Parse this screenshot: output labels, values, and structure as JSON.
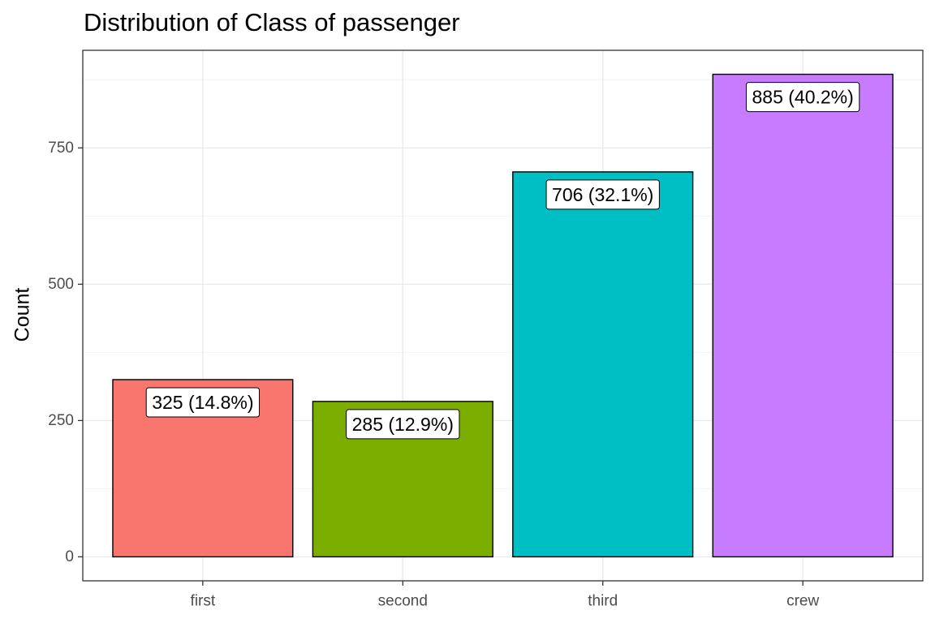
{
  "chart_data": {
    "type": "bar",
    "title": "Distribution of Class of passenger",
    "xlabel": "",
    "ylabel": "Count",
    "categories": [
      "first",
      "second",
      "third",
      "crew"
    ],
    "values": [
      325,
      285,
      706,
      885
    ],
    "data_labels": [
      "325 (14.8%)",
      "285 (12.9%)",
      "706 (32.1%)",
      "885 (40.2%)"
    ],
    "colors": [
      "#F8766D",
      "#7CAE00",
      "#00BFC4",
      "#C77CFF"
    ],
    "y_ticks": [
      0,
      250,
      500,
      750
    ],
    "y_tick_labels": [
      "0",
      "250",
      "500",
      "750"
    ],
    "ylim": [
      -44,
      929
    ],
    "grid": true,
    "legend": "none"
  }
}
